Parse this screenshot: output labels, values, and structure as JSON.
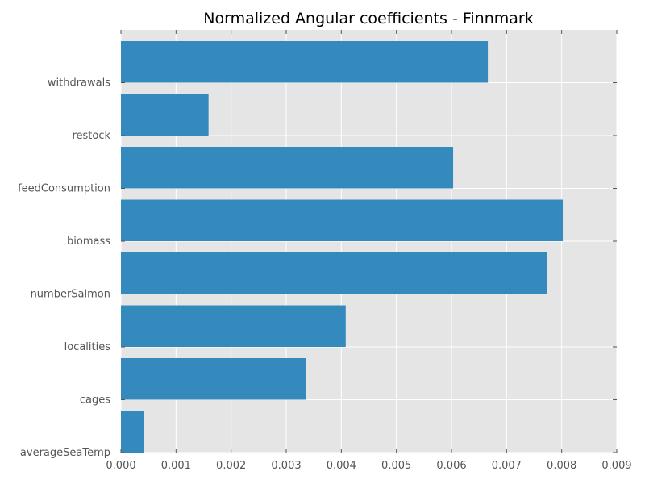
{
  "chart_data": {
    "type": "bar",
    "orientation": "horizontal",
    "title": "Normalized Angular coefficients - Finnmark",
    "xlabel": "",
    "ylabel": "",
    "categories": [
      "averageSeaTemp",
      "cages",
      "localities",
      "numberSalmon",
      "biomass",
      "feedConsumption",
      "restock",
      "withdrawals"
    ],
    "values": [
      0.00042,
      0.00336,
      0.00408,
      0.00773,
      0.00802,
      0.00603,
      0.00159,
      0.00666
    ],
    "xlim": [
      0,
      0.009
    ],
    "xticks": [
      "0.000",
      "0.001",
      "0.002",
      "0.003",
      "0.004",
      "0.005",
      "0.006",
      "0.007",
      "0.008",
      "0.009"
    ],
    "grid": true,
    "bar_color": "#348ABD",
    "background_color": "#E5E5E5",
    "grid_color": "#FFFFFF"
  }
}
